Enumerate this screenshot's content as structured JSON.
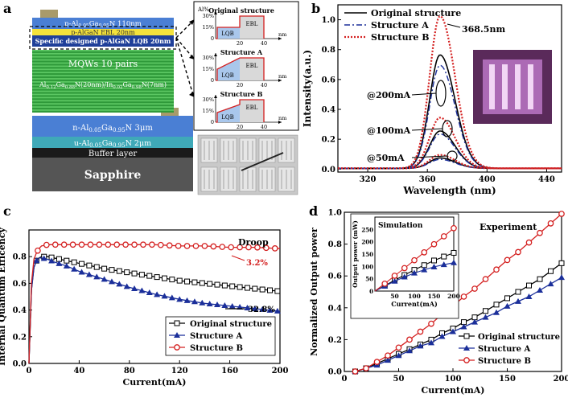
{
  "panel_labels": {
    "a": "a",
    "b": "b",
    "c": "c",
    "d": "d"
  },
  "panel_a": {
    "layers": [
      {
        "name": "layer-p-algan-110",
        "text_main": "p-Al",
        "text_sub1": "0.05",
        "text_mid": "Ga",
        "text_sub2": "0.95",
        "text_end": "N 110nm",
        "color": "#4a7fd4"
      },
      {
        "name": "layer-ebl",
        "text": "p-AlGaN EBL 20nm",
        "color": "#f4e23c"
      },
      {
        "name": "layer-lqb",
        "text": "Specific designed p-AlGaN LQB 20nm",
        "color": "#1f3f99"
      },
      {
        "name": "layer-mqw",
        "text": "MQWs 10 pairs",
        "color": "#3fae4a"
      },
      {
        "name": "layer-n-algan",
        "text_main": "n-Al",
        "text_sub1": "0.05",
        "text_mid": "Ga",
        "text_sub2": "0.95",
        "text_end": "N 3μm",
        "color": "#4a7fd4"
      },
      {
        "name": "layer-u-algan",
        "text_main": "u-Al",
        "text_sub1": "0.05",
        "text_mid": "Ga",
        "text_sub2": "0.95",
        "text_end": "N 2μm",
        "color": "#3fa9b8"
      },
      {
        "name": "layer-buffer",
        "text": "Buffer layer",
        "color": "#1a1a1a"
      },
      {
        "name": "layer-sapphire",
        "text": "Sapphire",
        "color": "#555555"
      }
    ],
    "mqw_formula": {
      "p1": "Al",
      "s1": "0.12",
      "p2": "Ga",
      "s2": "0.88",
      "p3": "N(20nm)/In",
      "s3": "0.02",
      "p4": "Ga",
      "s4": "0.98",
      "p5": "N(7nm)"
    },
    "structures": [
      {
        "title": "Original structure",
        "lqb": "LQB",
        "ebl": "EBL",
        "ylabel": "Al%",
        "yticks": [
          "30%",
          "15%",
          "0"
        ],
        "xticks": [
          "20",
          "40"
        ],
        "xunit": "nm"
      },
      {
        "title": "Structure A",
        "lqb": "LQB",
        "ebl": "EBL",
        "yticks": [
          "30%",
          "15%",
          "0"
        ],
        "xticks": [
          "20",
          "40"
        ],
        "xunit": "nm"
      },
      {
        "title": "Structure B",
        "lqb": "LQB",
        "ebl": "EBL",
        "yticks": [
          "30%",
          "15%",
          "0"
        ],
        "xticks": [
          "20",
          "40"
        ],
        "xunit": "nm"
      }
    ]
  },
  "colors": {
    "original": "#000000",
    "a": "#1b2f9a",
    "b": "#d42020",
    "mqw": "#3fae4a"
  },
  "chart_data": [
    {
      "id": "b",
      "type": "line",
      "xlabel": "Wavelength (nm)",
      "ylabel": "Intensity(a.u.)",
      "xlim": [
        300,
        450
      ],
      "ylim": [
        -0.02,
        1.1
      ],
      "xticks": [
        320,
        360,
        400,
        440
      ],
      "yticks": [
        0.0,
        0.2,
        0.4,
        0.6,
        0.8,
        1.0
      ],
      "peak_label": "368.5nm",
      "annotations": [
        "@200mA",
        "@100mA",
        "@50mA"
      ],
      "series": [
        {
          "name": "Original structure",
          "peaks": [
            0.76,
            0.25,
            0.07
          ]
        },
        {
          "name": "Structure A",
          "peaks": [
            0.69,
            0.23,
            0.06
          ]
        },
        {
          "name": "Structure B",
          "peaks": [
            1.02,
            0.34,
            0.09
          ]
        }
      ],
      "peak_nm": 368.5
    },
    {
      "id": "c",
      "type": "line",
      "xlabel": "Current(mA)",
      "ylabel": "Internal Quantum Efficency",
      "xlim": [
        0,
        200
      ],
      "ylim": [
        0,
        1.0
      ],
      "xticks": [
        0,
        40,
        80,
        120,
        160,
        200
      ],
      "yticks": [
        0.0,
        0.2,
        0.4,
        0.6,
        0.8
      ],
      "annotations": {
        "droop": "Droop",
        "b": "3.2%",
        "orig": "32.8%",
        "a": "51%"
      },
      "x": [
        0,
        2,
        4,
        6,
        8,
        10,
        15,
        20,
        30,
        40,
        60,
        80,
        100,
        120,
        140,
        160,
        180,
        200
      ],
      "series": [
        {
          "name": "Original structure",
          "values": [
            0.0,
            0.55,
            0.72,
            0.77,
            0.79,
            0.8,
            0.8,
            0.79,
            0.77,
            0.75,
            0.71,
            0.68,
            0.65,
            0.62,
            0.6,
            0.58,
            0.56,
            0.54
          ]
        },
        {
          "name": "Structure A",
          "values": [
            0.0,
            0.55,
            0.72,
            0.77,
            0.79,
            0.79,
            0.78,
            0.76,
            0.73,
            0.69,
            0.63,
            0.57,
            0.52,
            0.48,
            0.45,
            0.43,
            0.41,
            0.39
          ]
        },
        {
          "name": "Structure B",
          "values": [
            0.0,
            0.6,
            0.78,
            0.83,
            0.86,
            0.88,
            0.89,
            0.89,
            0.89,
            0.89,
            0.89,
            0.89,
            0.89,
            0.88,
            0.88,
            0.87,
            0.87,
            0.86
          ]
        }
      ]
    },
    {
      "id": "d",
      "type": "line",
      "title": "Experiment",
      "xlabel": "Current(mA)",
      "ylabel": "Normalized Output power",
      "xlim": [
        0,
        200
      ],
      "ylim": [
        0,
        1.0
      ],
      "xticks": [
        0,
        50,
        100,
        150,
        200
      ],
      "yticks": [
        0.0,
        0.2,
        0.4,
        0.6,
        0.8,
        1.0
      ],
      "x": [
        10,
        20,
        30,
        40,
        50,
        60,
        70,
        80,
        90,
        100,
        110,
        120,
        130,
        140,
        150,
        160,
        170,
        180,
        190,
        200
      ],
      "series": [
        {
          "name": "Original structure",
          "values": [
            0.0,
            0.02,
            0.05,
            0.08,
            0.11,
            0.14,
            0.17,
            0.2,
            0.24,
            0.27,
            0.31,
            0.34,
            0.38,
            0.42,
            0.46,
            0.5,
            0.54,
            0.58,
            0.63,
            0.68
          ]
        },
        {
          "name": "Structure A",
          "values": [
            0.0,
            0.02,
            0.04,
            0.07,
            0.1,
            0.13,
            0.16,
            0.18,
            0.22,
            0.25,
            0.28,
            0.31,
            0.34,
            0.37,
            0.41,
            0.44,
            0.47,
            0.51,
            0.55,
            0.59
          ]
        },
        {
          "name": "Structure B",
          "values": [
            0.0,
            0.02,
            0.06,
            0.1,
            0.15,
            0.2,
            0.25,
            0.3,
            0.36,
            0.41,
            0.47,
            0.52,
            0.58,
            0.64,
            0.7,
            0.75,
            0.81,
            0.87,
            0.93,
            0.99
          ]
        }
      ],
      "inset": {
        "title": "Simulation",
        "ylabel": "Output power (mW)",
        "xlabel": "Current(mA)",
        "xlim": [
          0,
          200
        ],
        "ylim": [
          0,
          300
        ],
        "xticks": [
          50,
          100,
          150,
          200
        ],
        "yticks": [
          0,
          50,
          100,
          150,
          200,
          250
        ],
        "x": [
          0,
          25,
          50,
          75,
          100,
          125,
          150,
          175,
          200
        ],
        "series": [
          {
            "name": "Original structure",
            "values": [
              0,
              22,
              44,
              65,
              86,
              105,
              124,
              140,
              155
            ]
          },
          {
            "name": "Structure A",
            "values": [
              0,
              20,
              40,
              57,
              73,
              86,
              98,
              107,
              115
            ]
          },
          {
            "name": "Structure B",
            "values": [
              0,
              30,
              62,
              93,
              125,
              157,
              190,
              222,
              255
            ]
          }
        ]
      }
    }
  ]
}
